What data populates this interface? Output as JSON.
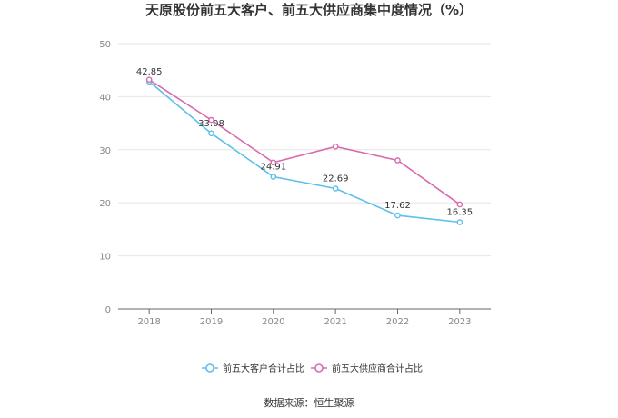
{
  "chart_data": {
    "type": "line",
    "title": "天原股份前五大客户、前五大供应商集中度情况（%）",
    "xlabel": "",
    "ylabel": "",
    "categories": [
      "2018",
      "2019",
      "2020",
      "2021",
      "2022",
      "2023"
    ],
    "y_ticks": [
      "0",
      "10",
      "20",
      "30",
      "40",
      "50"
    ],
    "ylim": [
      0,
      50
    ],
    "grid": true,
    "legend_position": "bottom",
    "series": [
      {
        "name": "前五大客户合计占比",
        "color": "#5bc0eb",
        "values": [
          42.85,
          33.08,
          24.91,
          22.69,
          17.62,
          16.35
        ],
        "labels": [
          "42.85",
          "33.08",
          "24.91",
          "22.69",
          "17.62",
          "16.35"
        ]
      },
      {
        "name": "前五大供应商合计占比",
        "color": "#d96aae",
        "values": [
          43.2,
          35.6,
          27.6,
          30.6,
          28.0,
          19.7
        ],
        "labels": []
      }
    ]
  },
  "source_text": "数据来源：恒生聚源"
}
